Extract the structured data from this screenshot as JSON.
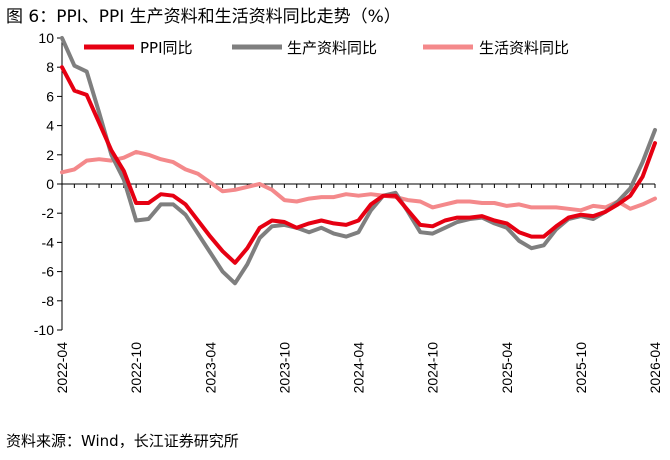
{
  "header": {
    "title": "图 6：PPI、PPI 生产资料和生活资料同比走势（%）"
  },
  "footer": {
    "source": "资料来源：Wind，长江证券研究所"
  },
  "chart_data": {
    "type": "line",
    "x": [
      "2022-04",
      "2022-05",
      "2022-06",
      "2022-07",
      "2022-08",
      "2022-09",
      "2022-10",
      "2022-11",
      "2022-12",
      "2023-01",
      "2023-02",
      "2023-03",
      "2023-04",
      "2023-05",
      "2023-06",
      "2023-07",
      "2023-08",
      "2023-09",
      "2023-10",
      "2023-11",
      "2023-12",
      "2024-01",
      "2024-02",
      "2024-03",
      "2024-04",
      "2024-05",
      "2024-06",
      "2024-07",
      "2024-08",
      "2024-09",
      "2024-10",
      "2024-11",
      "2024-12",
      "2025-01",
      "2025-02",
      "2025-03",
      "2025-04",
      "2025-05",
      "2025-06",
      "2025-07",
      "2025-08",
      "2025-09",
      "2025-10",
      "2025-11",
      "2025-12",
      "2026-01",
      "2026-02",
      "2026-03",
      "2026-04"
    ],
    "x_tick_labels": [
      "2022-04",
      "2022-10",
      "2023-04",
      "2023-10",
      "2024-04",
      "2024-10",
      "2025-04",
      "2025-10",
      "2026-04"
    ],
    "ylim": [
      -10,
      10
    ],
    "y_ticks": [
      10,
      8,
      6,
      4,
      2,
      0,
      -2,
      -4,
      -6,
      -8,
      -10
    ],
    "legend_position": "top",
    "grid": false,
    "series": [
      {
        "name": "PPI同比",
        "color": "#e60012",
        "width": 4,
        "values": [
          8.0,
          6.4,
          6.1,
          4.2,
          2.3,
          0.9,
          -1.3,
          -1.3,
          -0.7,
          -0.8,
          -1.4,
          -2.5,
          -3.6,
          -4.6,
          -5.4,
          -4.4,
          -3.0,
          -2.5,
          -2.6,
          -3.0,
          -2.7,
          -2.5,
          -2.7,
          -2.8,
          -2.5,
          -1.4,
          -0.8,
          -0.8,
          -1.8,
          -2.8,
          -2.9,
          -2.5,
          -2.3,
          -2.3,
          -2.2,
          -2.5,
          -2.7,
          -3.3,
          -3.6,
          -3.6,
          -2.9,
          -2.3,
          -2.1,
          -2.2,
          -1.9,
          -1.4,
          -0.8,
          0.5,
          2.8
        ]
      },
      {
        "name": "生产资料同比",
        "color": "#7f7f7f",
        "width": 4,
        "values": [
          10.0,
          8.1,
          7.7,
          4.9,
          2.0,
          0.3,
          -2.5,
          -2.4,
          -1.4,
          -1.4,
          -2.1,
          -3.4,
          -4.7,
          -6.0,
          -6.8,
          -5.5,
          -3.7,
          -2.9,
          -2.8,
          -3.0,
          -3.3,
          -3.0,
          -3.4,
          -3.6,
          -3.3,
          -1.8,
          -0.8,
          -0.6,
          -1.9,
          -3.3,
          -3.4,
          -3.0,
          -2.6,
          -2.4,
          -2.3,
          -2.7,
          -3.0,
          -3.9,
          -4.4,
          -4.2,
          -3.1,
          -2.4,
          -2.2,
          -2.4,
          -1.9,
          -1.2,
          -0.3,
          1.5,
          3.7
        ]
      },
      {
        "name": "生活资料同比",
        "color": "#f4898b",
        "width": 4,
        "values": [
          0.8,
          1.0,
          1.6,
          1.7,
          1.6,
          1.8,
          2.2,
          2.0,
          1.7,
          1.5,
          1.0,
          0.7,
          0.1,
          -0.5,
          -0.4,
          -0.2,
          0.0,
          -0.4,
          -1.1,
          -1.2,
          -1.0,
          -0.9,
          -0.9,
          -0.7,
          -0.8,
          -0.7,
          -0.8,
          -0.9,
          -1.1,
          -1.2,
          -1.6,
          -1.4,
          -1.2,
          -1.2,
          -1.3,
          -1.3,
          -1.5,
          -1.4,
          -1.6,
          -1.6,
          -1.6,
          -1.7,
          -1.8,
          -1.5,
          -1.6,
          -1.2,
          -1.7,
          -1.4,
          -1.0
        ]
      }
    ]
  }
}
